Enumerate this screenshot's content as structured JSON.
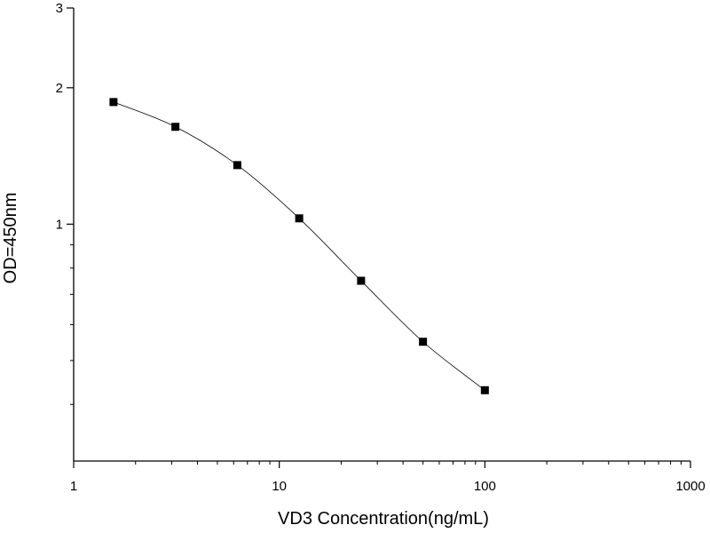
{
  "chart_data": {
    "type": "scatter",
    "title": "",
    "xlabel": "VD3 Concentration(ng/mL)",
    "ylabel": "OD=450nm",
    "x_scale": "log",
    "y_scale": "log",
    "xlim": [
      1,
      1000
    ],
    "ylim": [
      0.3,
      3
    ],
    "x_ticks": [
      1,
      10,
      100,
      1000
    ],
    "x_tick_labels": [
      "1",
      "10",
      "100",
      "1000"
    ],
    "y_ticks": [
      1,
      2,
      3
    ],
    "y_tick_labels": [
      "1",
      "2",
      "3"
    ],
    "grid": false,
    "legend": "none",
    "series": [
      {
        "x": [
          1.5625,
          3.125,
          6.25,
          12.5,
          25,
          50,
          100
        ],
        "y": [
          1.86,
          1.64,
          1.35,
          1.03,
          0.75,
          0.55,
          0.43
        ],
        "marker": "square",
        "connected": true,
        "color": "#000000"
      }
    ]
  }
}
